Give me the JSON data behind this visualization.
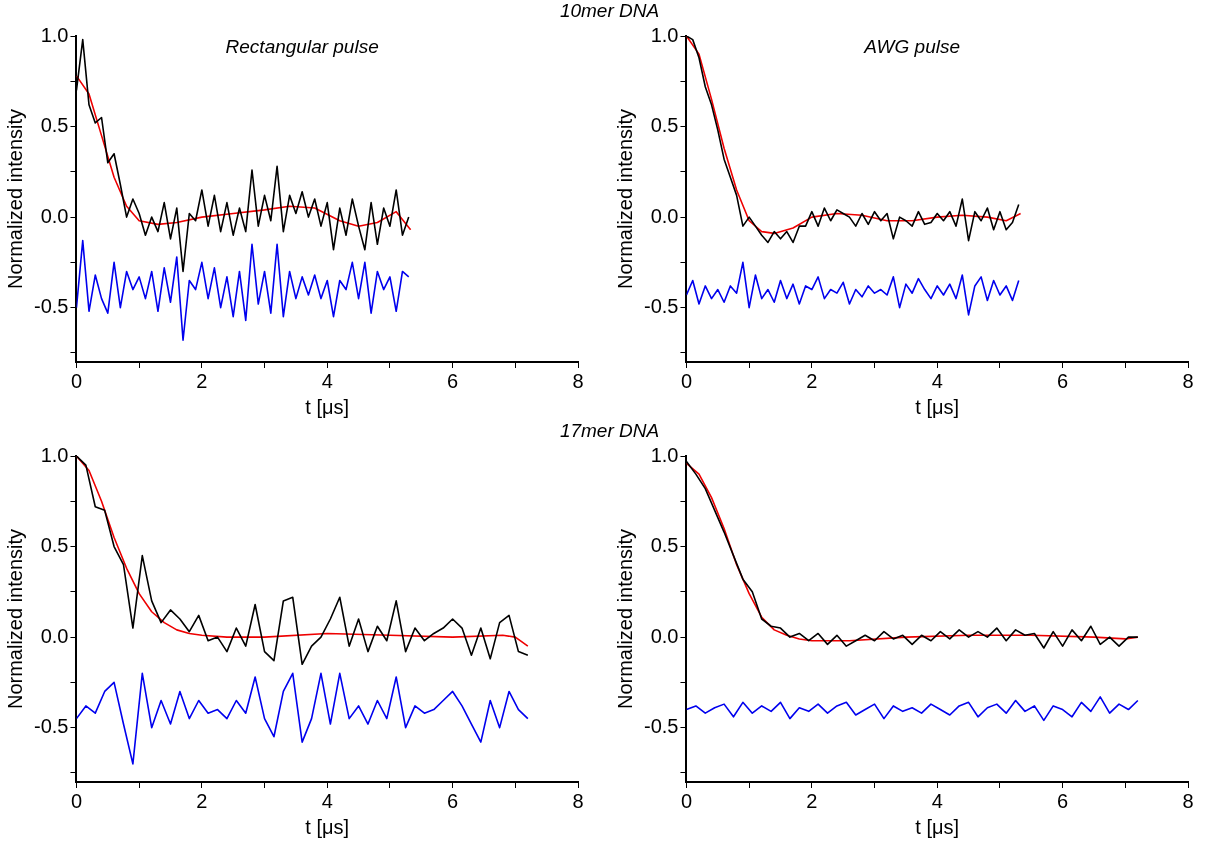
{
  "chart_data": [
    {
      "type": "line",
      "title": "10mer DNA",
      "annotations": [
        "Rectangular pulse"
      ],
      "xlabel": "t [μs]",
      "ylabel": "Normalized intensity",
      "xlim": [
        0,
        8
      ],
      "xticks": [
        0,
        {
          "value": 1,
          "label": null
        },
        2,
        {
          "value": 3,
          "label": null
        },
        4,
        {
          "value": 5,
          "label": null
        },
        6,
        {
          "value": 7,
          "label": null
        },
        8
      ],
      "ylim": [
        -0.8,
        1.0
      ],
      "yticks": [
        {
          "value": -0.75,
          "label": null
        },
        {
          "value": -0.5,
          "label": "-0.5"
        },
        {
          "value": -0.25,
          "label": null
        },
        {
          "value": 0,
          "label": "0.0"
        },
        {
          "value": 0.25,
          "label": null
        },
        {
          "value": 0.5,
          "label": "0.5"
        },
        {
          "value": 0.75,
          "label": null
        },
        {
          "value": 1,
          "label": "1.0"
        }
      ],
      "marker": "none",
      "line_style": "solid",
      "grid": false,
      "legend": false,
      "x": [
        0,
        0.1,
        0.2,
        0.3,
        0.4,
        0.5,
        0.6,
        0.7,
        0.8,
        0.9,
        1.0,
        1.1,
        1.2,
        1.3,
        1.4,
        1.5,
        1.6,
        1.7,
        1.8,
        1.9,
        2.0,
        2.1,
        2.2,
        2.3,
        2.4,
        2.5,
        2.6,
        2.7,
        2.8,
        2.9,
        3.0,
        3.1,
        3.2,
        3.3,
        3.4,
        3.5,
        3.6,
        3.7,
        3.8,
        3.9,
        4.0,
        4.1,
        4.2,
        4.3,
        4.4,
        4.5,
        4.6,
        4.7,
        4.8,
        4.9,
        5.0,
        5.1,
        5.2,
        5.3
      ],
      "series": [
        {
          "color": "#000000",
          "values": [
            0.7,
            0.98,
            0.62,
            0.52,
            0.55,
            0.3,
            0.35,
            0.18,
            0.0,
            0.1,
            0.02,
            -0.1,
            0.0,
            -0.08,
            0.08,
            -0.12,
            0.05,
            -0.3,
            0.02,
            -0.02,
            0.15,
            -0.05,
            0.12,
            -0.08,
            0.08,
            -0.1,
            0.05,
            -0.08,
            0.26,
            -0.05,
            0.12,
            -0.02,
            0.28,
            -0.08,
            0.12,
            0.02,
            0.14,
            0.0,
            0.1,
            -0.05,
            0.08,
            -0.18,
            0.05,
            -0.1,
            0.1,
            -0.05,
            -0.18,
            0.08,
            -0.15,
            0.05,
            -0.05,
            0.15,
            -0.1,
            0.0
          ]
        },
        {
          "color": "#0000ee",
          "values": [
            -0.5,
            -0.13,
            -0.52,
            -0.32,
            -0.45,
            -0.53,
            -0.25,
            -0.5,
            -0.3,
            -0.4,
            -0.33,
            -0.45,
            -0.3,
            -0.52,
            -0.28,
            -0.47,
            -0.22,
            -0.68,
            -0.35,
            -0.4,
            -0.25,
            -0.45,
            -0.28,
            -0.5,
            -0.33,
            -0.55,
            -0.3,
            -0.57,
            -0.15,
            -0.48,
            -0.3,
            -0.53,
            -0.15,
            -0.55,
            -0.3,
            -0.45,
            -0.33,
            -0.43,
            -0.32,
            -0.45,
            -0.35,
            -0.55,
            -0.35,
            -0.4,
            -0.25,
            -0.45,
            -0.25,
            -0.53,
            -0.3,
            -0.4,
            -0.33,
            -0.52,
            -0.3,
            -0.33
          ]
        },
        {
          "color": "#ee0000",
          "x": [
            0,
            0.2,
            0.4,
            0.6,
            0.8,
            1.0,
            1.3,
            1.6,
            2.0,
            2.5,
            3.0,
            3.4,
            3.8,
            4.2,
            4.5,
            4.8,
            5.1,
            5.33
          ],
          "values": [
            0.78,
            0.68,
            0.45,
            0.22,
            0.06,
            -0.02,
            -0.04,
            -0.03,
            0.0,
            0.02,
            0.04,
            0.06,
            0.05,
            -0.02,
            -0.05,
            -0.03,
            0.03,
            -0.07
          ]
        }
      ]
    },
    {
      "type": "line",
      "annotations": [
        "AWG pulse"
      ],
      "xlabel": "t [μs]",
      "ylabel": "Normalized intensity",
      "xlim": [
        0,
        8
      ],
      "xticks": [
        0,
        {
          "value": 1,
          "label": null
        },
        2,
        {
          "value": 3,
          "label": null
        },
        4,
        {
          "value": 5,
          "label": null
        },
        6,
        {
          "value": 7,
          "label": null
        },
        8
      ],
      "ylim": [
        -0.8,
        1.0
      ],
      "yticks": [
        {
          "value": -0.75,
          "label": null
        },
        {
          "value": -0.5,
          "label": "-0.5"
        },
        {
          "value": -0.25,
          "label": null
        },
        {
          "value": 0,
          "label": "0.0"
        },
        {
          "value": 0.25,
          "label": null
        },
        {
          "value": 0.5,
          "label": "0.5"
        },
        {
          "value": 0.75,
          "label": null
        },
        {
          "value": 1,
          "label": "1.0"
        }
      ],
      "marker": "none",
      "line_style": "solid",
      "grid": false,
      "legend": false,
      "x": [
        0,
        0.1,
        0.2,
        0.3,
        0.4,
        0.5,
        0.6,
        0.7,
        0.8,
        0.9,
        1.0,
        1.1,
        1.2,
        1.3,
        1.4,
        1.5,
        1.6,
        1.7,
        1.8,
        1.9,
        2.0,
        2.1,
        2.2,
        2.3,
        2.4,
        2.5,
        2.6,
        2.7,
        2.8,
        2.9,
        3.0,
        3.1,
        3.2,
        3.3,
        3.4,
        3.5,
        3.6,
        3.7,
        3.8,
        3.9,
        4.0,
        4.1,
        4.2,
        4.3,
        4.4,
        4.5,
        4.6,
        4.7,
        4.8,
        4.9,
        5.0,
        5.1,
        5.2,
        5.3
      ],
      "series": [
        {
          "color": "#000000",
          "values": [
            1.0,
            0.98,
            0.88,
            0.72,
            0.62,
            0.48,
            0.32,
            0.22,
            0.12,
            -0.05,
            0.0,
            -0.05,
            -0.1,
            -0.14,
            -0.08,
            -0.12,
            -0.08,
            -0.14,
            -0.05,
            -0.05,
            0.03,
            -0.05,
            0.05,
            -0.02,
            0.04,
            0.02,
            0.0,
            -0.05,
            0.02,
            -0.04,
            0.03,
            -0.02,
            0.02,
            -0.12,
            0.0,
            -0.02,
            -0.05,
            0.03,
            -0.04,
            -0.03,
            0.02,
            -0.02,
            0.03,
            -0.05,
            0.1,
            -0.13,
            0.03,
            -0.02,
            0.05,
            -0.07,
            0.03,
            -0.07,
            -0.03,
            0.07
          ]
        },
        {
          "color": "#0000ee",
          "values": [
            -0.43,
            -0.35,
            -0.48,
            -0.38,
            -0.45,
            -0.4,
            -0.47,
            -0.38,
            -0.42,
            -0.25,
            -0.5,
            -0.32,
            -0.45,
            -0.4,
            -0.47,
            -0.35,
            -0.45,
            -0.37,
            -0.48,
            -0.38,
            -0.4,
            -0.33,
            -0.45,
            -0.4,
            -0.42,
            -0.36,
            -0.48,
            -0.4,
            -0.44,
            -0.38,
            -0.42,
            -0.4,
            -0.43,
            -0.33,
            -0.5,
            -0.37,
            -0.42,
            -0.34,
            -0.4,
            -0.45,
            -0.38,
            -0.43,
            -0.37,
            -0.45,
            -0.32,
            -0.54,
            -0.38,
            -0.33,
            -0.46,
            -0.35,
            -0.43,
            -0.38,
            -0.46,
            -0.35
          ]
        },
        {
          "color": "#ee0000",
          "x": [
            0,
            0.2,
            0.4,
            0.6,
            0.8,
            1.0,
            1.2,
            1.4,
            1.7,
            2.0,
            2.4,
            2.8,
            3.2,
            3.6,
            4.0,
            4.4,
            4.8,
            5.1,
            5.33
          ],
          "values": [
            1.0,
            0.9,
            0.65,
            0.38,
            0.15,
            -0.02,
            -0.08,
            -0.09,
            -0.06,
            0.0,
            0.02,
            0.01,
            -0.02,
            -0.02,
            0.0,
            0.01,
            0.0,
            -0.02,
            0.02
          ]
        }
      ]
    },
    {
      "type": "line",
      "title": "17mer DNA",
      "xlabel": "t [μs]",
      "ylabel": "Normalized intensity",
      "xlim": [
        0,
        8
      ],
      "xticks": [
        0,
        {
          "value": 1,
          "label": null
        },
        2,
        {
          "value": 3,
          "label": null
        },
        4,
        {
          "value": 5,
          "label": null
        },
        6,
        {
          "value": 7,
          "label": null
        },
        8
      ],
      "ylim": [
        -0.8,
        1.0
      ],
      "yticks": [
        {
          "value": -0.75,
          "label": null
        },
        {
          "value": -0.5,
          "label": "-0.5"
        },
        {
          "value": -0.25,
          "label": null
        },
        {
          "value": 0,
          "label": "0.0"
        },
        {
          "value": 0.25,
          "label": null
        },
        {
          "value": 0.5,
          "label": "0.5"
        },
        {
          "value": 0.75,
          "label": null
        },
        {
          "value": 1,
          "label": "1.0"
        }
      ],
      "marker": "none",
      "line_style": "solid",
      "grid": false,
      "legend": false,
      "x": [
        0,
        0.15,
        0.3,
        0.45,
        0.6,
        0.75,
        0.9,
        1.05,
        1.2,
        1.35,
        1.5,
        1.65,
        1.8,
        1.95,
        2.1,
        2.25,
        2.4,
        2.55,
        2.7,
        2.85,
        3.0,
        3.15,
        3.3,
        3.45,
        3.6,
        3.75,
        3.9,
        4.05,
        4.2,
        4.35,
        4.5,
        4.65,
        4.8,
        4.95,
        5.1,
        5.25,
        5.4,
        5.55,
        5.7,
        5.85,
        6.0,
        6.15,
        6.3,
        6.45,
        6.6,
        6.75,
        6.9,
        7.05,
        7.2
      ],
      "series": [
        {
          "color": "#000000",
          "values": [
            1.0,
            0.95,
            0.72,
            0.7,
            0.5,
            0.4,
            0.05,
            0.45,
            0.2,
            0.08,
            0.15,
            0.1,
            0.03,
            0.12,
            -0.02,
            0.0,
            -0.08,
            0.05,
            -0.05,
            0.18,
            -0.08,
            -0.13,
            0.2,
            0.22,
            -0.15,
            -0.05,
            0.0,
            0.1,
            0.22,
            -0.05,
            0.1,
            -0.08,
            0.06,
            -0.02,
            0.2,
            -0.08,
            0.05,
            -0.02,
            0.02,
            0.05,
            0.1,
            0.05,
            -0.1,
            0.05,
            -0.12,
            0.08,
            0.12,
            -0.08,
            -0.1
          ]
        },
        {
          "color": "#0000ee",
          "values": [
            -0.45,
            -0.38,
            -0.42,
            -0.3,
            -0.25,
            -0.48,
            -0.7,
            -0.2,
            -0.5,
            -0.35,
            -0.48,
            -0.3,
            -0.45,
            -0.35,
            -0.42,
            -0.4,
            -0.45,
            -0.35,
            -0.42,
            -0.22,
            -0.45,
            -0.55,
            -0.3,
            -0.2,
            -0.58,
            -0.45,
            -0.2,
            -0.48,
            -0.2,
            -0.45,
            -0.38,
            -0.48,
            -0.35,
            -0.45,
            -0.22,
            -0.5,
            -0.38,
            -0.42,
            -0.4,
            -0.35,
            -0.3,
            -0.38,
            -0.48,
            -0.58,
            -0.35,
            -0.5,
            -0.3,
            -0.4,
            -0.45
          ]
        },
        {
          "color": "#ee0000",
          "x": [
            0,
            0.2,
            0.4,
            0.6,
            0.8,
            1.0,
            1.2,
            1.4,
            1.6,
            1.8,
            2.0,
            2.4,
            3.0,
            4.0,
            5.0,
            6.0,
            6.8,
            7.0,
            7.2
          ],
          "values": [
            1.0,
            0.92,
            0.75,
            0.55,
            0.38,
            0.24,
            0.14,
            0.08,
            0.04,
            0.02,
            0.01,
            0.0,
            0.0,
            0.02,
            0.01,
            0.0,
            0.01,
            0.0,
            -0.05
          ]
        }
      ]
    },
    {
      "type": "line",
      "xlabel": "t [μs]",
      "ylabel": "Normalized intensity",
      "xlim": [
        0,
        8
      ],
      "xticks": [
        0,
        {
          "value": 1,
          "label": null
        },
        2,
        {
          "value": 3,
          "label": null
        },
        4,
        {
          "value": 5,
          "label": null
        },
        6,
        {
          "value": 7,
          "label": null
        },
        8
      ],
      "ylim": [
        -0.8,
        1.0
      ],
      "yticks": [
        {
          "value": -0.75,
          "label": null
        },
        {
          "value": -0.5,
          "label": "-0.5"
        },
        {
          "value": -0.25,
          "label": null
        },
        {
          "value": 0,
          "label": "0.0"
        },
        {
          "value": 0.25,
          "label": null
        },
        {
          "value": 0.5,
          "label": "0.5"
        },
        {
          "value": 0.75,
          "label": null
        },
        {
          "value": 1,
          "label": "1.0"
        }
      ],
      "marker": "none",
      "line_style": "solid",
      "grid": false,
      "legend": false,
      "x": [
        0,
        0.15,
        0.3,
        0.45,
        0.6,
        0.75,
        0.9,
        1.05,
        1.2,
        1.35,
        1.5,
        1.65,
        1.8,
        1.95,
        2.1,
        2.25,
        2.4,
        2.55,
        2.7,
        2.85,
        3.0,
        3.15,
        3.3,
        3.45,
        3.6,
        3.75,
        3.9,
        4.05,
        4.2,
        4.35,
        4.5,
        4.65,
        4.8,
        4.95,
        5.1,
        5.25,
        5.4,
        5.55,
        5.7,
        5.85,
        6.0,
        6.15,
        6.3,
        6.45,
        6.6,
        6.75,
        6.9,
        7.05,
        7.2
      ],
      "series": [
        {
          "color": "#000000",
          "values": [
            0.97,
            0.9,
            0.82,
            0.7,
            0.58,
            0.45,
            0.32,
            0.25,
            0.1,
            0.06,
            0.05,
            0.0,
            0.02,
            -0.02,
            0.02,
            -0.04,
            0.01,
            -0.05,
            -0.02,
            0.01,
            -0.02,
            0.03,
            -0.01,
            0.01,
            -0.04,
            0.01,
            -0.02,
            0.03,
            -0.01,
            0.04,
            0.0,
            0.03,
            0.0,
            0.05,
            -0.02,
            0.04,
            0.01,
            0.02,
            -0.06,
            0.03,
            -0.05,
            0.04,
            -0.02,
            0.06,
            -0.04,
            0.0,
            -0.05,
            0.0,
            0.0
          ]
        },
        {
          "color": "#0000ee",
          "values": [
            -0.4,
            -0.38,
            -0.42,
            -0.39,
            -0.37,
            -0.44,
            -0.36,
            -0.42,
            -0.38,
            -0.41,
            -0.36,
            -0.45,
            -0.39,
            -0.41,
            -0.37,
            -0.42,
            -0.38,
            -0.36,
            -0.43,
            -0.4,
            -0.37,
            -0.45,
            -0.38,
            -0.41,
            -0.39,
            -0.42,
            -0.37,
            -0.4,
            -0.43,
            -0.38,
            -0.36,
            -0.44,
            -0.39,
            -0.37,
            -0.42,
            -0.35,
            -0.41,
            -0.38,
            -0.46,
            -0.38,
            -0.4,
            -0.44,
            -0.36,
            -0.41,
            -0.33,
            -0.42,
            -0.37,
            -0.4,
            -0.35
          ]
        },
        {
          "color": "#ee0000",
          "x": [
            0,
            0.2,
            0.4,
            0.6,
            0.8,
            1.0,
            1.2,
            1.4,
            1.6,
            1.8,
            2.0,
            2.6,
            3.5,
            4.5,
            5.5,
            6.5,
            7.0,
            7.2
          ],
          "values": [
            0.96,
            0.9,
            0.77,
            0.6,
            0.4,
            0.24,
            0.11,
            0.04,
            0.01,
            -0.01,
            -0.02,
            -0.02,
            0.0,
            0.01,
            0.01,
            0.0,
            -0.01,
            0.0
          ]
        }
      ]
    }
  ]
}
